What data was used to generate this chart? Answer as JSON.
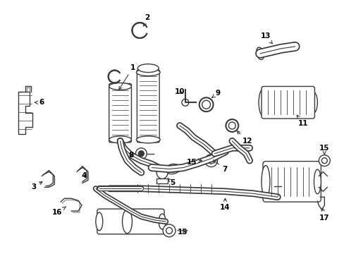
{
  "bg_color": "#ffffff",
  "line_color": "#3a3a3a",
  "text_color": "#000000",
  "fig_width": 4.89,
  "fig_height": 3.6,
  "dpi": 100,
  "label_fontsize": 7.5
}
